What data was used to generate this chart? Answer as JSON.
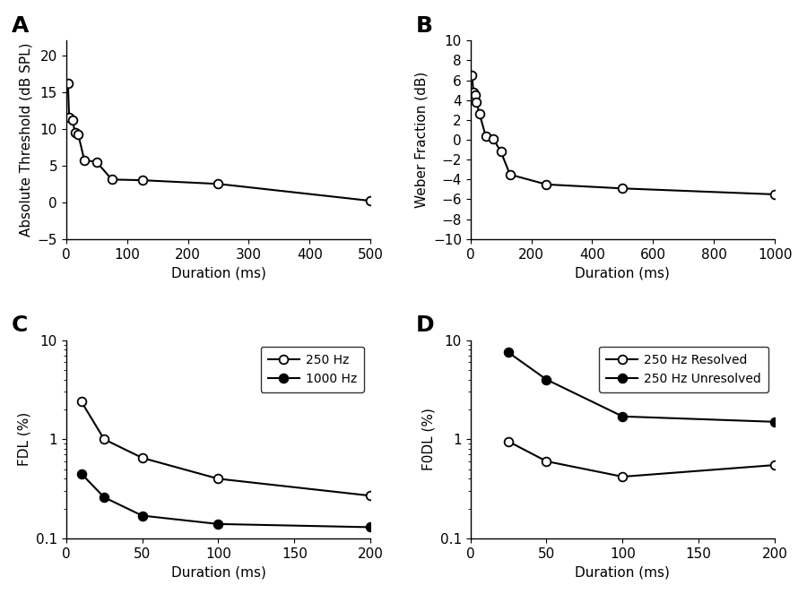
{
  "panel_A": {
    "label": "A",
    "x": [
      3,
      5,
      10,
      15,
      20,
      30,
      50,
      75,
      125,
      250,
      500
    ],
    "y": [
      16.2,
      11.5,
      11.2,
      9.5,
      9.2,
      5.7,
      5.5,
      3.1,
      3.0,
      2.5,
      0.2
    ],
    "xlabel": "Duration (ms)",
    "ylabel": "Absolute Threshold (dB SPL)",
    "xlim": [
      0,
      500
    ],
    "ylim": [
      -5,
      22
    ],
    "yticks": [
      -5,
      0,
      5,
      10,
      15,
      20
    ],
    "xticks": [
      0,
      100,
      200,
      300,
      400,
      500
    ]
  },
  "panel_B": {
    "label": "B",
    "x": [
      5,
      10,
      15,
      20,
      30,
      50,
      75,
      100,
      130,
      250,
      500,
      1000
    ],
    "y": [
      6.5,
      4.8,
      4.5,
      3.8,
      2.6,
      0.4,
      0.1,
      -1.2,
      -3.5,
      -4.5,
      -4.9,
      -5.5
    ],
    "xlabel": "Duration (ms)",
    "ylabel": "Weber Fraction (dB)",
    "xlim": [
      0,
      1000
    ],
    "ylim": [
      -10,
      10
    ],
    "yticks": [
      -10,
      -8,
      -6,
      -4,
      -2,
      0,
      2,
      4,
      6,
      8,
      10
    ],
    "xticks": [
      0,
      200,
      400,
      600,
      800,
      1000
    ]
  },
  "panel_C": {
    "label": "C",
    "xlabel": "Duration (ms)",
    "ylabel": "FDL (%)",
    "xlim": [
      0,
      200
    ],
    "ylim_log": [
      0.1,
      10
    ],
    "xticks": [
      0,
      50,
      100,
      150,
      200
    ],
    "series": [
      {
        "label": "250 Hz",
        "x": [
          10,
          25,
          50,
          100,
          200
        ],
        "y": [
          2.4,
          1.0,
          0.65,
          0.4,
          0.27
        ],
        "fillstyle": "none"
      },
      {
        "label": "1000 Hz",
        "x": [
          10,
          25,
          50,
          100,
          200
        ],
        "y": [
          0.45,
          0.26,
          0.17,
          0.14,
          0.13
        ],
        "fillstyle": "full"
      }
    ]
  },
  "panel_D": {
    "label": "D",
    "xlabel": "Duration (ms)",
    "ylabel": "F0DL (%)",
    "xlim": [
      0,
      200
    ],
    "ylim_log": [
      0.1,
      10
    ],
    "xticks": [
      0,
      50,
      100,
      150,
      200
    ],
    "series": [
      {
        "label": "250 Hz Resolved",
        "x": [
          25,
          50,
          100,
          200
        ],
        "y": [
          0.95,
          0.6,
          0.42,
          0.55
        ],
        "fillstyle": "none"
      },
      {
        "label": "250 Hz Unresolved",
        "x": [
          25,
          50,
          100,
          200
        ],
        "y": [
          7.5,
          4.0,
          1.7,
          1.5
        ],
        "fillstyle": "full"
      }
    ]
  },
  "marker_size": 7,
  "linewidth": 1.5,
  "font_size": 11,
  "label_font_size": 11,
  "panel_label_size": 18
}
